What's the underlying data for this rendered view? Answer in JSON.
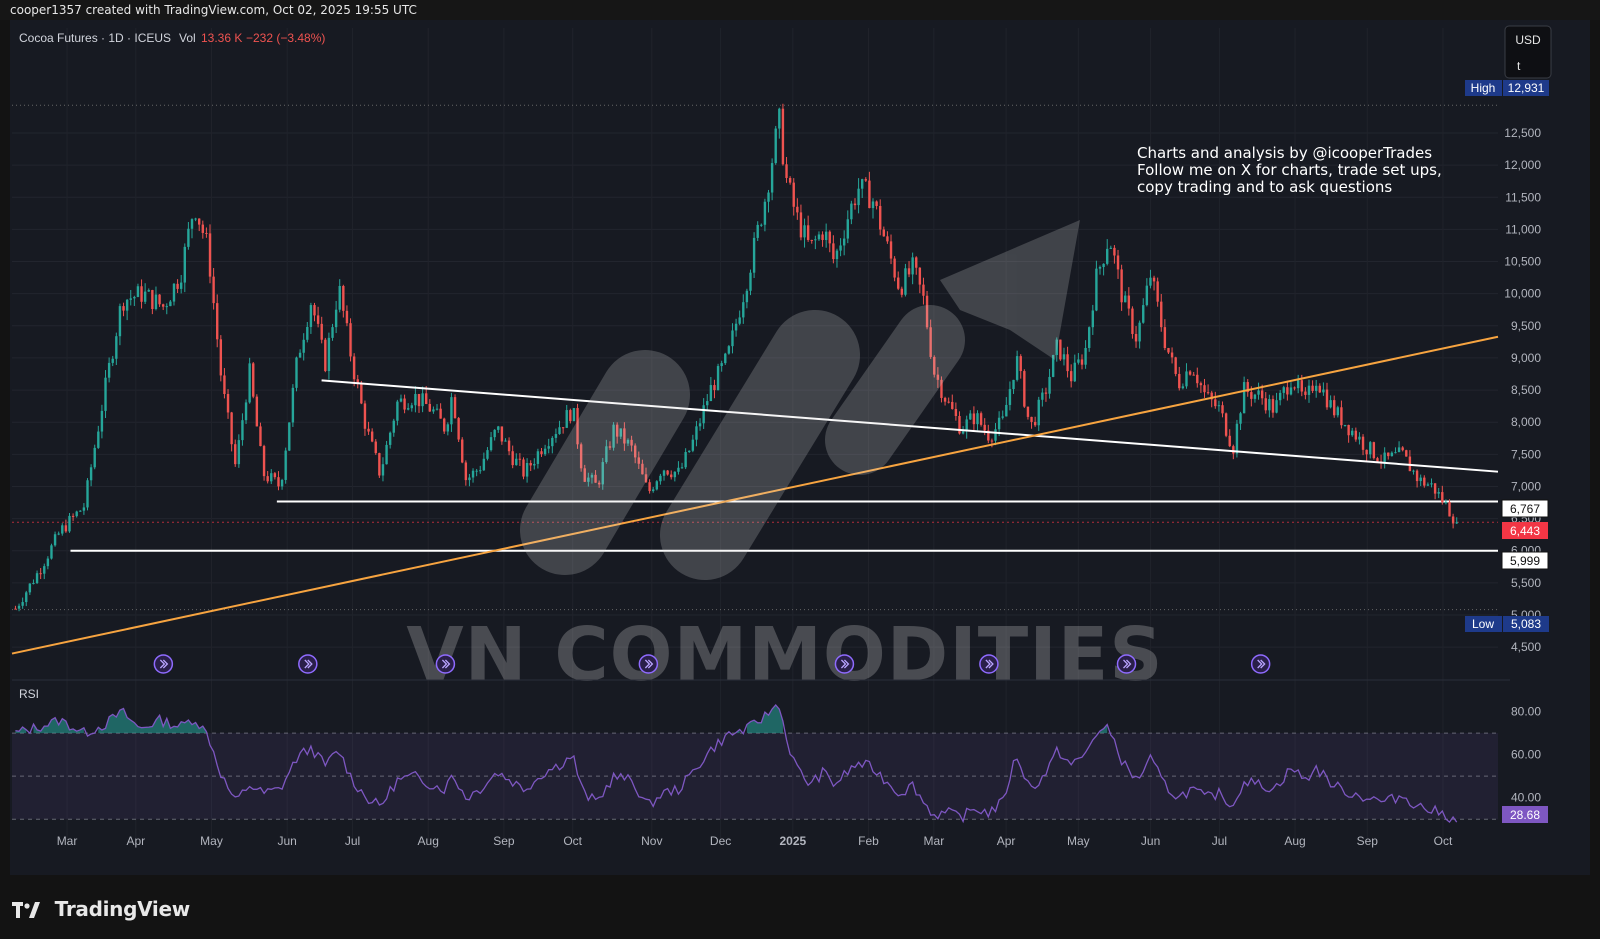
{
  "header": {
    "credit": "cooper1357 created with TradingView.com, Oct 02, 2025 19:55 UTC"
  },
  "legend": {
    "symbol": "Cocoa Futures · 1D · ICEUS",
    "vol_label": "Vol",
    "vol_value": "13.36 K",
    "change": "−232 (−3.48%)"
  },
  "currency": {
    "line1": "USD",
    "line2": "t"
  },
  "annotation": {
    "line1": "Charts and analysis by @icooperTrades",
    "line2": "Follow me on X for charts, trade set ups,",
    "line3": "copy trading and to ask questions"
  },
  "watermark": "VN COMMODITIES",
  "branding": {
    "name": "TradingView"
  },
  "price_tags": {
    "high_label": "High",
    "high_value": "12,931",
    "low_label": "Low",
    "low_value": "5,083",
    "level_1": "6,767",
    "last": "6,443",
    "level_2": "5,999"
  },
  "rsi": {
    "label": "RSI",
    "value": "28.68"
  },
  "colors": {
    "up": "#26a69a",
    "down": "#ef5350",
    "trend_orange": "#f7a440",
    "rsi_line": "#7e57c2",
    "background": "#171a22"
  },
  "chart_data": {
    "type": "candlestick",
    "instrument": "Cocoa Futures",
    "interval": "1D",
    "exchange": "ICEUS",
    "y_ticks": [
      4500,
      5000,
      5500,
      6000,
      6500,
      7000,
      7500,
      8000,
      8500,
      9000,
      9500,
      10000,
      10500,
      11000,
      11500,
      12000,
      12500
    ],
    "y_tick_labels": [
      "4,500",
      "5,000",
      "5,500",
      "6,000",
      "6,500",
      "7,000",
      "7,500",
      "8,000",
      "8,500",
      "9,000",
      "9,500",
      "10,000",
      "10,500",
      "11,000",
      "11,500",
      "12,000",
      "12,500"
    ],
    "ylim": [
      4300,
      13200
    ],
    "x_labels": [
      {
        "label": "Mar",
        "t": 0.5
      },
      {
        "label": "Apr",
        "t": 1.5
      },
      {
        "label": "May",
        "t": 2.6
      },
      {
        "label": "Jun",
        "t": 3.7
      },
      {
        "label": "Jul",
        "t": 4.65
      },
      {
        "label": "Aug",
        "t": 5.75
      },
      {
        "label": "Sep",
        "t": 6.85
      },
      {
        "label": "Oct",
        "t": 7.85
      },
      {
        "label": "Nov",
        "t": 9.0
      },
      {
        "label": "Dec",
        "t": 10.0
      },
      {
        "label": "2025",
        "t": 11.05
      },
      {
        "label": "Feb",
        "t": 12.15
      },
      {
        "label": "Mar",
        "t": 13.1
      },
      {
        "label": "Apr",
        "t": 14.15
      },
      {
        "label": "May",
        "t": 15.2
      },
      {
        "label": "Jun",
        "t": 16.25
      },
      {
        "label": "Jul",
        "t": 17.25
      },
      {
        "label": "Aug",
        "t": 18.35
      },
      {
        "label": "Sep",
        "t": 19.4
      },
      {
        "label": "Oct",
        "t": 20.5
      }
    ],
    "t_range": [
      -0.3,
      21.3
    ],
    "path_anchors": [
      [
        -0.25,
        5100
      ],
      [
        0.1,
        5700
      ],
      [
        0.4,
        6300
      ],
      [
        0.75,
        6700
      ],
      [
        1.05,
        8500
      ],
      [
        1.3,
        9900
      ],
      [
        1.6,
        10000
      ],
      [
        1.9,
        9800
      ],
      [
        2.15,
        10300
      ],
      [
        2.35,
        11400
      ],
      [
        2.55,
        10700
      ],
      [
        2.75,
        8600
      ],
      [
        2.95,
        7300
      ],
      [
        3.15,
        8800
      ],
      [
        3.35,
        7200
      ],
      [
        3.6,
        7000
      ],
      [
        3.85,
        9000
      ],
      [
        4.05,
        9900
      ],
      [
        4.25,
        8900
      ],
      [
        4.45,
        10100
      ],
      [
        4.65,
        8900
      ],
      [
        4.85,
        7900
      ],
      [
        5.05,
        7200
      ],
      [
        5.3,
        8300
      ],
      [
        5.55,
        8400
      ],
      [
        5.8,
        8200
      ],
      [
        6.0,
        7900
      ],
      [
        6.1,
        8450
      ],
      [
        6.3,
        7100
      ],
      [
        6.5,
        7300
      ],
      [
        6.75,
        7900
      ],
      [
        6.95,
        7500
      ],
      [
        7.15,
        7200
      ],
      [
        7.45,
        7700
      ],
      [
        7.7,
        8000
      ],
      [
        7.85,
        8200
      ],
      [
        8.0,
        7200
      ],
      [
        8.2,
        7000
      ],
      [
        8.45,
        7900
      ],
      [
        8.7,
        7600
      ],
      [
        8.95,
        6900
      ],
      [
        9.15,
        7300
      ],
      [
        9.4,
        7200
      ],
      [
        9.6,
        7700
      ],
      [
        9.85,
        8500
      ],
      [
        10.1,
        9000
      ],
      [
        10.4,
        10300
      ],
      [
        10.65,
        11500
      ],
      [
        10.85,
        12700
      ],
      [
        10.95,
        11800
      ],
      [
        11.1,
        11200
      ],
      [
        11.3,
        10700
      ],
      [
        11.5,
        11000
      ],
      [
        11.65,
        10500
      ],
      [
        11.85,
        11200
      ],
      [
        12.0,
        11650
      ],
      [
        12.2,
        11500
      ],
      [
        12.4,
        10800
      ],
      [
        12.6,
        10100
      ],
      [
        12.8,
        10400
      ],
      [
        12.95,
        9900
      ],
      [
        13.1,
        8800
      ],
      [
        13.3,
        8300
      ],
      [
        13.5,
        7900
      ],
      [
        13.7,
        8100
      ],
      [
        13.9,
        7800
      ],
      [
        14.1,
        8000
      ],
      [
        14.3,
        9000
      ],
      [
        14.5,
        7900
      ],
      [
        14.7,
        8400
      ],
      [
        14.9,
        9200
      ],
      [
        15.1,
        8700
      ],
      [
        15.3,
        9100
      ],
      [
        15.45,
        10200
      ],
      [
        15.65,
        10900
      ],
      [
        15.85,
        9900
      ],
      [
        16.05,
        9300
      ],
      [
        16.25,
        10300
      ],
      [
        16.45,
        9300
      ],
      [
        16.65,
        8600
      ],
      [
        16.85,
        8900
      ],
      [
        17.05,
        8400
      ],
      [
        17.25,
        8200
      ],
      [
        17.45,
        7600
      ],
      [
        17.6,
        8500
      ],
      [
        17.85,
        8400
      ],
      [
        18.05,
        8200
      ],
      [
        18.3,
        8700
      ],
      [
        18.5,
        8300
      ],
      [
        18.65,
        8700
      ],
      [
        18.9,
        8200
      ],
      [
        19.15,
        7900
      ],
      [
        19.4,
        7600
      ],
      [
        19.65,
        7400
      ],
      [
        19.9,
        7500
      ],
      [
        20.15,
        7100
      ],
      [
        20.35,
        7000
      ],
      [
        20.55,
        6700
      ],
      [
        20.7,
        6443
      ]
    ],
    "horizontal_levels": [
      {
        "price": 6767,
        "t_start": 3.55
      },
      {
        "price": 5999,
        "t_start": 0.55
      }
    ],
    "trendlines": [
      {
        "name": "descending",
        "points": [
          [
            4.2,
            8650
          ],
          [
            21.3,
            7230
          ]
        ]
      },
      {
        "name": "ascending",
        "points": [
          [
            -0.3,
            4400
          ],
          [
            21.3,
            9330
          ]
        ]
      }
    ],
    "high": 12931,
    "low": 5083,
    "last": 6443,
    "rsi": {
      "ticks": [
        40,
        60,
        80
      ],
      "tick_labels": [
        "40.00",
        "60.00",
        "80.00"
      ],
      "bands": [
        30,
        50,
        70
      ],
      "ylim": [
        25,
        90
      ],
      "last": 28.68,
      "anchors": [
        [
          -0.25,
          70
        ],
        [
          0.1,
          73
        ],
        [
          0.4,
          76
        ],
        [
          0.75,
          70
        ],
        [
          1.05,
          74
        ],
        [
          1.3,
          80
        ],
        [
          1.55,
          72
        ],
        [
          1.85,
          76
        ],
        [
          2.15,
          73
        ],
        [
          2.35,
          77
        ],
        [
          2.55,
          69
        ],
        [
          2.75,
          50
        ],
        [
          2.95,
          38
        ],
        [
          3.15,
          46
        ],
        [
          3.35,
          42
        ],
        [
          3.6,
          44
        ],
        [
          3.85,
          59
        ],
        [
          4.05,
          63
        ],
        [
          4.25,
          55
        ],
        [
          4.45,
          62
        ],
        [
          4.65,
          48
        ],
        [
          4.85,
          40
        ],
        [
          5.05,
          36
        ],
        [
          5.3,
          48
        ],
        [
          5.55,
          50
        ],
        [
          5.8,
          46
        ],
        [
          6.0,
          44
        ],
        [
          6.1,
          51
        ],
        [
          6.3,
          40
        ],
        [
          6.5,
          44
        ],
        [
          6.75,
          52
        ],
        [
          6.95,
          48
        ],
        [
          7.15,
          44
        ],
        [
          7.45,
          52
        ],
        [
          7.7,
          56
        ],
        [
          7.85,
          60
        ],
        [
          8.0,
          42
        ],
        [
          8.2,
          38
        ],
        [
          8.45,
          50
        ],
        [
          8.7,
          48
        ],
        [
          8.95,
          36
        ],
        [
          9.15,
          42
        ],
        [
          9.4,
          44
        ],
        [
          9.6,
          52
        ],
        [
          9.85,
          62
        ],
        [
          10.1,
          69
        ],
        [
          10.4,
          72
        ],
        [
          10.65,
          78
        ],
        [
          10.85,
          84
        ],
        [
          10.95,
          68
        ],
        [
          11.1,
          54
        ],
        [
          11.3,
          46
        ],
        [
          11.5,
          52
        ],
        [
          11.65,
          46
        ],
        [
          11.85,
          52
        ],
        [
          12.0,
          56
        ],
        [
          12.2,
          54
        ],
        [
          12.4,
          48
        ],
        [
          12.6,
          42
        ],
        [
          12.8,
          46
        ],
        [
          12.95,
          38
        ],
        [
          13.1,
          32
        ],
        [
          13.3,
          33
        ],
        [
          13.5,
          31
        ],
        [
          13.7,
          35
        ],
        [
          13.9,
          33
        ],
        [
          14.1,
          38
        ],
        [
          14.3,
          60
        ],
        [
          14.5,
          44
        ],
        [
          14.7,
          50
        ],
        [
          14.9,
          62
        ],
        [
          15.1,
          55
        ],
        [
          15.3,
          60
        ],
        [
          15.45,
          70
        ],
        [
          15.65,
          72
        ],
        [
          15.85,
          56
        ],
        [
          16.05,
          48
        ],
        [
          16.25,
          58
        ],
        [
          16.45,
          46
        ],
        [
          16.65,
          40
        ],
        [
          16.85,
          44
        ],
        [
          17.05,
          40
        ],
        [
          17.25,
          42
        ],
        [
          17.45,
          36
        ],
        [
          17.6,
          48
        ],
        [
          17.85,
          46
        ],
        [
          18.05,
          44
        ],
        [
          18.3,
          54
        ],
        [
          18.5,
          48
        ],
        [
          18.65,
          54
        ],
        [
          18.9,
          46
        ],
        [
          19.15,
          42
        ],
        [
          19.4,
          40
        ],
        [
          19.65,
          38
        ],
        [
          19.9,
          41
        ],
        [
          20.15,
          36
        ],
        [
          20.35,
          34
        ],
        [
          20.55,
          32
        ],
        [
          20.7,
          28.68
        ]
      ]
    },
    "event_markers_t": [
      1.9,
      4.0,
      6.0,
      8.95,
      11.8,
      13.9,
      15.9,
      17.85
    ]
  }
}
